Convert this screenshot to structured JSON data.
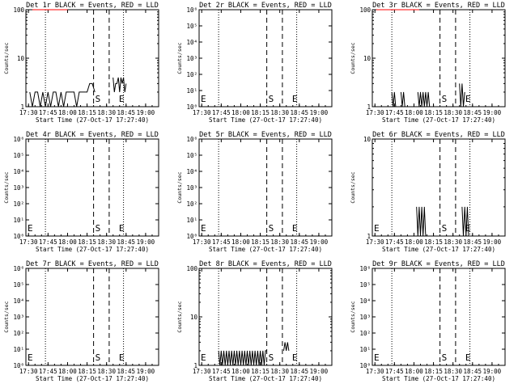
{
  "figure": {
    "x_tick_labels": [
      "17:30",
      "17:45",
      "18:00",
      "18:15",
      "18:30",
      "18:45",
      "19:00"
    ],
    "xlabel": "Start Time (27-Oct-17 17:27:40)",
    "ylabel": "Counts/sec",
    "colors": {
      "events": "#000000",
      "lld": "#ff0000"
    }
  },
  "chart_data": [
    {
      "type": "line",
      "title": "Det 1r BLACK = Events, RED = LLD",
      "ylim": [
        1,
        100
      ],
      "yscale": "log",
      "ytick_labels": [
        "1",
        "10",
        "100"
      ],
      "markers": {
        "start": "17:43",
        "S": "18:20",
        "E": "18:32",
        "end": "18:43"
      },
      "marker_labels": {
        "S": "S",
        "E": "E"
      },
      "series": [
        {
          "color": "#000000",
          "segments": [
            {
              "x": [
                "17:31",
                "17:33",
                "17:35",
                "17:37",
                "17:39",
                "17:41",
                "17:43",
                "17:45",
                "17:47",
                "17:49",
                "17:51",
                "17:53",
                "17:55",
                "17:57",
                "17:59",
                "18:01",
                "18:03",
                "18:05",
                "18:07",
                "18:09",
                "18:11",
                "18:13",
                "18:15",
                "18:17",
                "18:19",
                "18:21"
              ],
              "y": [
                2,
                1,
                2,
                2,
                1,
                2,
                1,
                2,
                1,
                2,
                2,
                1,
                2,
                1,
                2,
                2,
                2,
                2,
                1,
                2,
                2,
                2,
                2,
                3,
                3,
                2
              ]
            },
            {
              "x": [
                "18:35",
                "18:36",
                "18:37",
                "18:38",
                "18:39",
                "18:40",
                "18:41",
                "18:42",
                "18:43",
                "18:44",
                "18:45"
              ],
              "y": [
                4,
                2,
                3,
                3,
                4,
                2,
                4,
                3,
                4,
                2,
                3
              ]
            }
          ]
        },
        {
          "color": "#ff0000",
          "segments": [
            {
              "x": [
                "17:33",
                "17:36",
                "17:39",
                "17:42",
                "17:45",
                "17:48",
                "17:51",
                "17:54",
                "17:57",
                "18:00"
              ],
              "y": [
                105,
                104,
                102,
                103,
                101,
                102,
                104,
                103,
                102,
                103
              ]
            }
          ]
        }
      ]
    },
    {
      "type": "line",
      "title": "Det 2r BLACK = Events, RED = LLD",
      "ylim": [
        1,
        1000000
      ],
      "yscale": "log",
      "ytick_labels": [
        "10⁰",
        "10¹",
        "10²",
        "10³",
        "10⁴",
        "10⁵",
        "10⁶"
      ],
      "markers": {
        "start": "17:43",
        "S": "18:20",
        "E": "18:32",
        "end": "18:43"
      },
      "marker_labels": {
        "E0": "E",
        "S": "S",
        "E": "E"
      },
      "series": []
    },
    {
      "type": "line",
      "title": "Det 3r BLACK = Events, RED = LLD",
      "ylim": [
        1,
        100
      ],
      "yscale": "log",
      "ytick_labels": [
        "1",
        "10",
        "100"
      ],
      "markers": {
        "start": "17:43",
        "S": "18:20",
        "E": "18:32",
        "end": "18:43"
      },
      "marker_labels": {
        "S": "S",
        "E": "E"
      },
      "series": [
        {
          "color": "#000000",
          "segments": [
            {
              "x": [
                "17:43",
                "17:44",
                "17:45",
                "17:46"
              ],
              "y": [
                2,
                1,
                2,
                1
              ]
            },
            {
              "x": [
                "17:50",
                "17:51",
                "17:52",
                "17:53"
              ],
              "y": [
                2,
                1,
                2,
                1
              ]
            },
            {
              "x": [
                "18:03",
                "18:04",
                "18:05",
                "18:06",
                "18:07",
                "18:08",
                "18:09",
                "18:10",
                "18:11",
                "18:12"
              ],
              "y": [
                2,
                1,
                2,
                1,
                2,
                1,
                2,
                1,
                2,
                1
              ]
            },
            {
              "x": [
                "18:35",
                "18:36",
                "18:37",
                "18:38",
                "18:39"
              ],
              "y": [
                3,
                1,
                3,
                1,
                2
              ]
            }
          ]
        },
        {
          "color": "#ff0000",
          "segments": [
            {
              "x": [
                "17:31",
                "17:34",
                "17:37",
                "17:40",
                "17:43",
                "17:46",
                "17:49",
                "17:52",
                "17:55",
                "17:58",
                "18:01",
                "18:04"
              ],
              "y": [
                104,
                101,
                103,
                102,
                104,
                103,
                101,
                102,
                103,
                104,
                102,
                103
              ]
            }
          ]
        }
      ]
    },
    {
      "type": "line",
      "title": "Det 4r BLACK = Events, RED = LLD",
      "ylim": [
        1,
        1000000
      ],
      "yscale": "log",
      "ytick_labels": [
        "10⁰",
        "10¹",
        "10²",
        "10³",
        "10⁴",
        "10⁵",
        "10⁶"
      ],
      "markers": {
        "start": "17:43",
        "S": "18:20",
        "E": "18:32",
        "end": "18:43"
      },
      "marker_labels": {
        "E0": "E",
        "S": "S",
        "E": "E"
      },
      "series": []
    },
    {
      "type": "line",
      "title": "Det 5r BLACK = Events, RED = LLD",
      "ylim": [
        1,
        1000000
      ],
      "yscale": "log",
      "ytick_labels": [
        "10⁰",
        "10¹",
        "10²",
        "10³",
        "10⁴",
        "10⁵",
        "10⁶"
      ],
      "markers": {
        "start": "17:43",
        "S": "18:20",
        "E": "18:32",
        "end": "18:43"
      },
      "marker_labels": {
        "E0": "E",
        "S": "S",
        "E": "E"
      },
      "series": []
    },
    {
      "type": "line",
      "title": "Det 6r BLACK = Events, RED = LLD",
      "ylim": [
        1,
        10
      ],
      "yscale": "log",
      "ytick_labels": [
        "1",
        "10"
      ],
      "markers": {
        "start": "17:43",
        "S": "18:20",
        "E": "18:32",
        "end": "18:43"
      },
      "marker_labels": {
        "E0": "E",
        "S": "S",
        "E": "E"
      },
      "series": [
        {
          "color": "#000000",
          "segments": [
            {
              "x": [
                "18:02",
                "18:03",
                "18:04",
                "18:05",
                "18:06",
                "18:07",
                "18:08",
                "18:09"
              ],
              "y": [
                2,
                1,
                2,
                1,
                2,
                1,
                2,
                1
              ]
            },
            {
              "x": [
                "18:37",
                "18:38",
                "18:39",
                "18:40",
                "18:41",
                "18:42"
              ],
              "y": [
                2,
                1,
                2,
                1,
                2,
                1
              ]
            }
          ]
        }
      ]
    },
    {
      "type": "line",
      "title": "Det 7r BLACK = Events, RED = LLD",
      "ylim": [
        1,
        1000000
      ],
      "yscale": "log",
      "ytick_labels": [
        "10⁰",
        "10¹",
        "10²",
        "10³",
        "10⁴",
        "10⁵",
        "10⁶"
      ],
      "markers": {
        "start": "17:43",
        "S": "18:20",
        "E": "18:32",
        "end": "18:43"
      },
      "marker_labels": {
        "E0": "E",
        "S": "S",
        "E": "E"
      },
      "series": []
    },
    {
      "type": "line",
      "title": "Det 8r BLACK = Events, RED = LLD",
      "ylim": [
        1,
        100
      ],
      "yscale": "log",
      "ytick_labels": [
        "1",
        "10",
        "100"
      ],
      "markers": {
        "start": "17:43",
        "S": "18:20",
        "E": "18:32",
        "end": "18:43"
      },
      "marker_labels": {
        "E0": "E",
        "S": "S",
        "E": "E"
      },
      "series": [
        {
          "color": "#000000",
          "segments": [
            {
              "x": [
                "17:43",
                "17:44",
                "17:45",
                "17:46",
                "17:47",
                "17:48",
                "17:49",
                "17:50",
                "17:51",
                "17:52",
                "17:53",
                "17:54",
                "17:55",
                "17:56",
                "17:57",
                "17:58",
                "17:59",
                "18:00",
                "18:01",
                "18:02",
                "18:03",
                "18:04",
                "18:05",
                "18:06",
                "18:07",
                "18:08",
                "18:09",
                "18:10",
                "18:11",
                "18:12",
                "18:13",
                "18:14",
                "18:15",
                "18:16",
                "18:17",
                "18:18",
                "18:19",
                "18:20"
              ],
              "y": [
                2,
                1,
                2,
                1,
                2,
                1,
                2,
                1,
                2,
                1,
                2,
                1,
                2,
                1,
                2,
                1,
                2,
                1,
                2,
                1,
                2,
                1,
                2,
                1,
                2,
                1,
                2,
                1,
                2,
                1,
                2,
                1,
                2,
                1,
                2,
                1,
                2,
                2
              ]
            },
            {
              "x": [
                "18:33",
                "18:34",
                "18:35",
                "18:36",
                "18:37"
              ],
              "y": [
                2,
                3,
                2,
                3,
                2
              ]
            }
          ]
        }
      ]
    },
    {
      "type": "line",
      "title": "Det 9r BLACK = Events, RED = LLD",
      "ylim": [
        1,
        1000000
      ],
      "yscale": "log",
      "ytick_labels": [
        "10⁰",
        "10¹",
        "10²",
        "10³",
        "10⁴",
        "10⁵",
        "10⁶"
      ],
      "markers": {
        "start": "17:43",
        "S": "18:20",
        "E": "18:32",
        "end": "18:43"
      },
      "marker_labels": {
        "E0": "E",
        "S": "S",
        "E": "E"
      },
      "series": []
    }
  ]
}
